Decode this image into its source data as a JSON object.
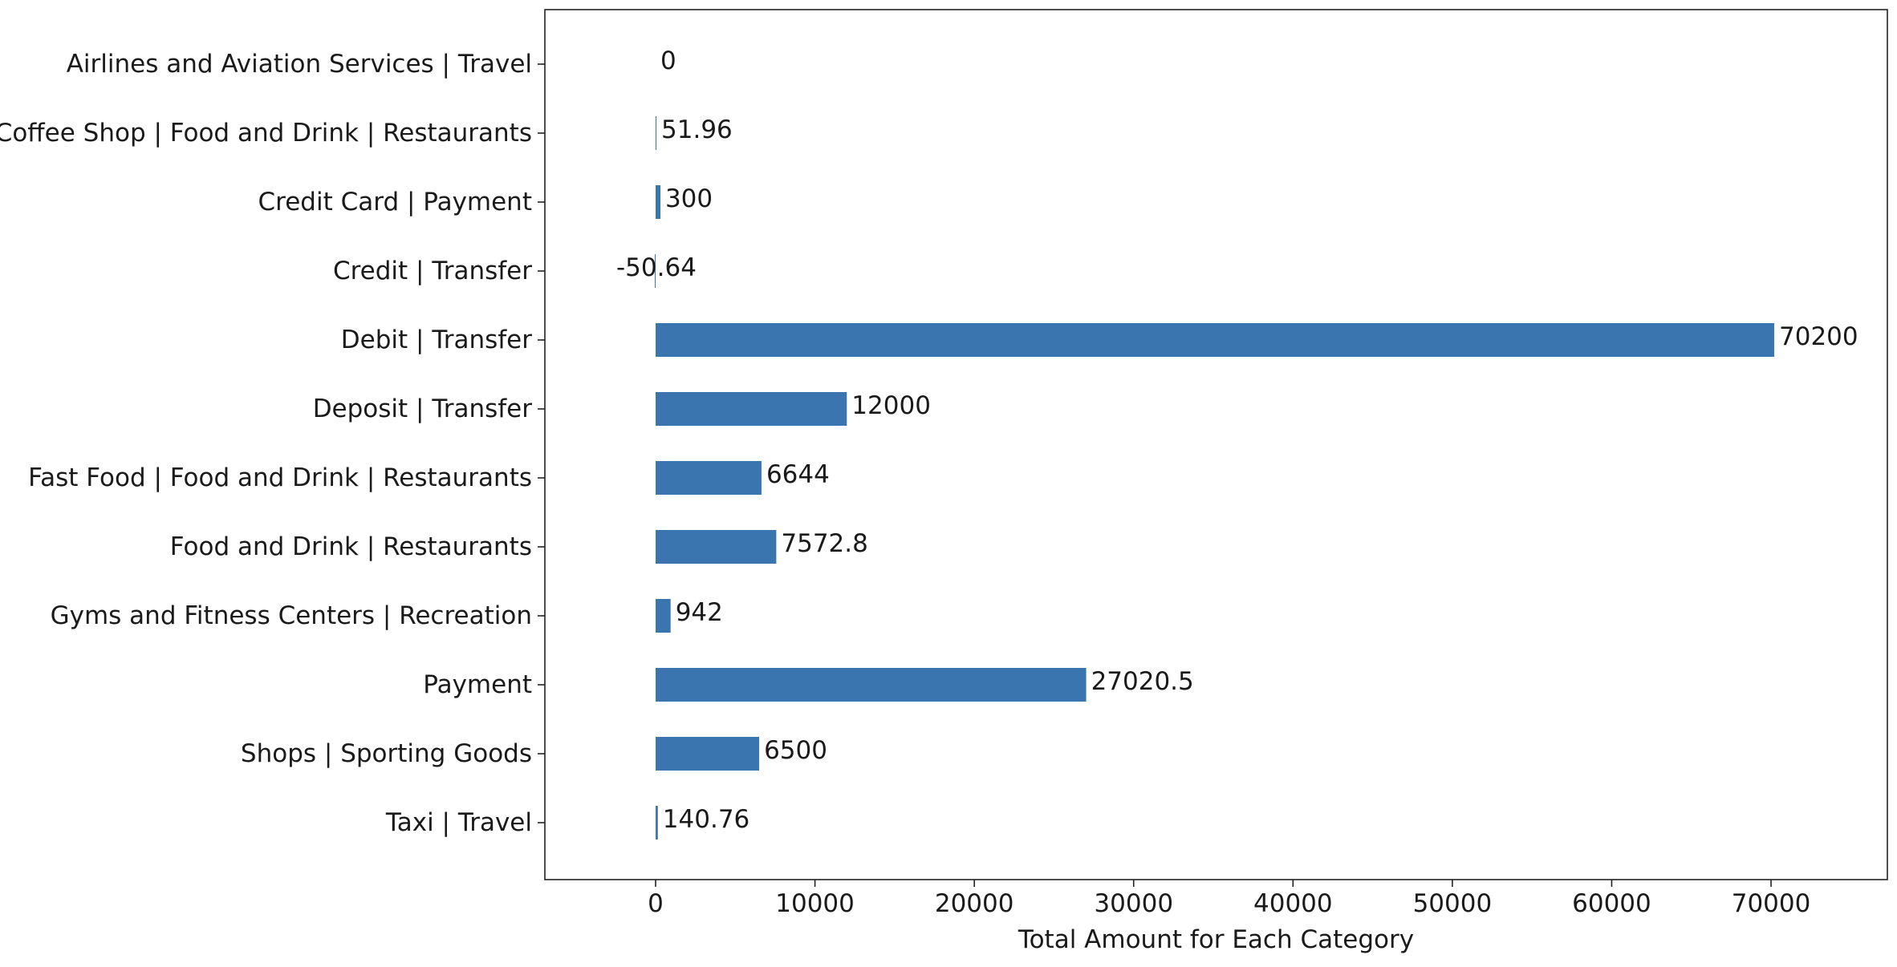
{
  "chart_data": {
    "type": "bar",
    "orientation": "horizontal",
    "categories": [
      "Airlines and Aviation Services | Travel",
      "Coffee Shop | Food and Drink | Restaurants",
      "Credit Card | Payment",
      "Credit | Transfer",
      "Debit | Transfer",
      "Deposit | Transfer",
      "Fast Food | Food and Drink | Restaurants",
      "Food and Drink | Restaurants",
      "Gyms and Fitness Centers | Recreation",
      "Payment",
      "Shops | Sporting Goods",
      "Taxi | Travel"
    ],
    "values": [
      0,
      51.96,
      300,
      -50.64,
      70200,
      12000,
      6644,
      7572.8,
      942,
      27020.5,
      6500,
      140.76
    ],
    "data_labels": [
      "0",
      "51.96",
      "300",
      "-50.64",
      "70200",
      "12000",
      "6644",
      "7572.8",
      "942",
      "27020.5",
      "6500",
      "140.76"
    ],
    "title": "",
    "xlabel": "Total Amount for Each Category",
    "ylabel": "",
    "xlim": [
      -6950,
      77300
    ],
    "xticks": [
      0,
      10000,
      20000,
      30000,
      40000,
      50000,
      60000,
      70000
    ],
    "xtick_labels": [
      "0",
      "10000",
      "20000",
      "30000",
      "40000",
      "50000",
      "60000",
      "70000"
    ],
    "grid": false,
    "legend": false,
    "bar_color": "#3a75af"
  }
}
